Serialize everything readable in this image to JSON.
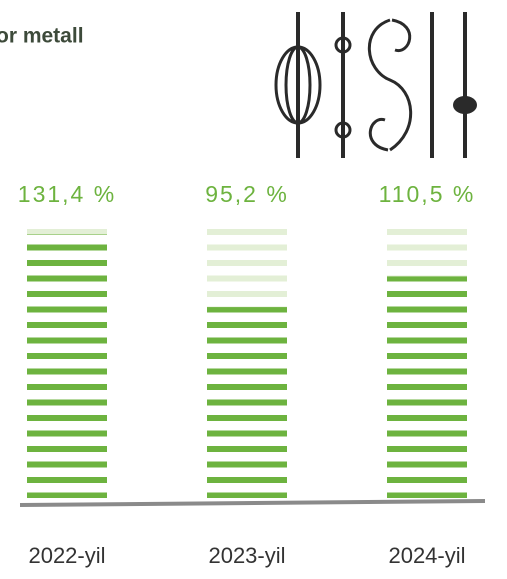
{
  "chart_data": {
    "type": "bar",
    "title": "or metall",
    "categories": [
      "2022-yil",
      "2023-yil",
      "2024-yil"
    ],
    "values": [
      131.4,
      95.2,
      110.5
    ],
    "value_labels": [
      "131,4 %",
      "95,2 %",
      "110,5 %"
    ],
    "color": "#6db33f"
  }
}
